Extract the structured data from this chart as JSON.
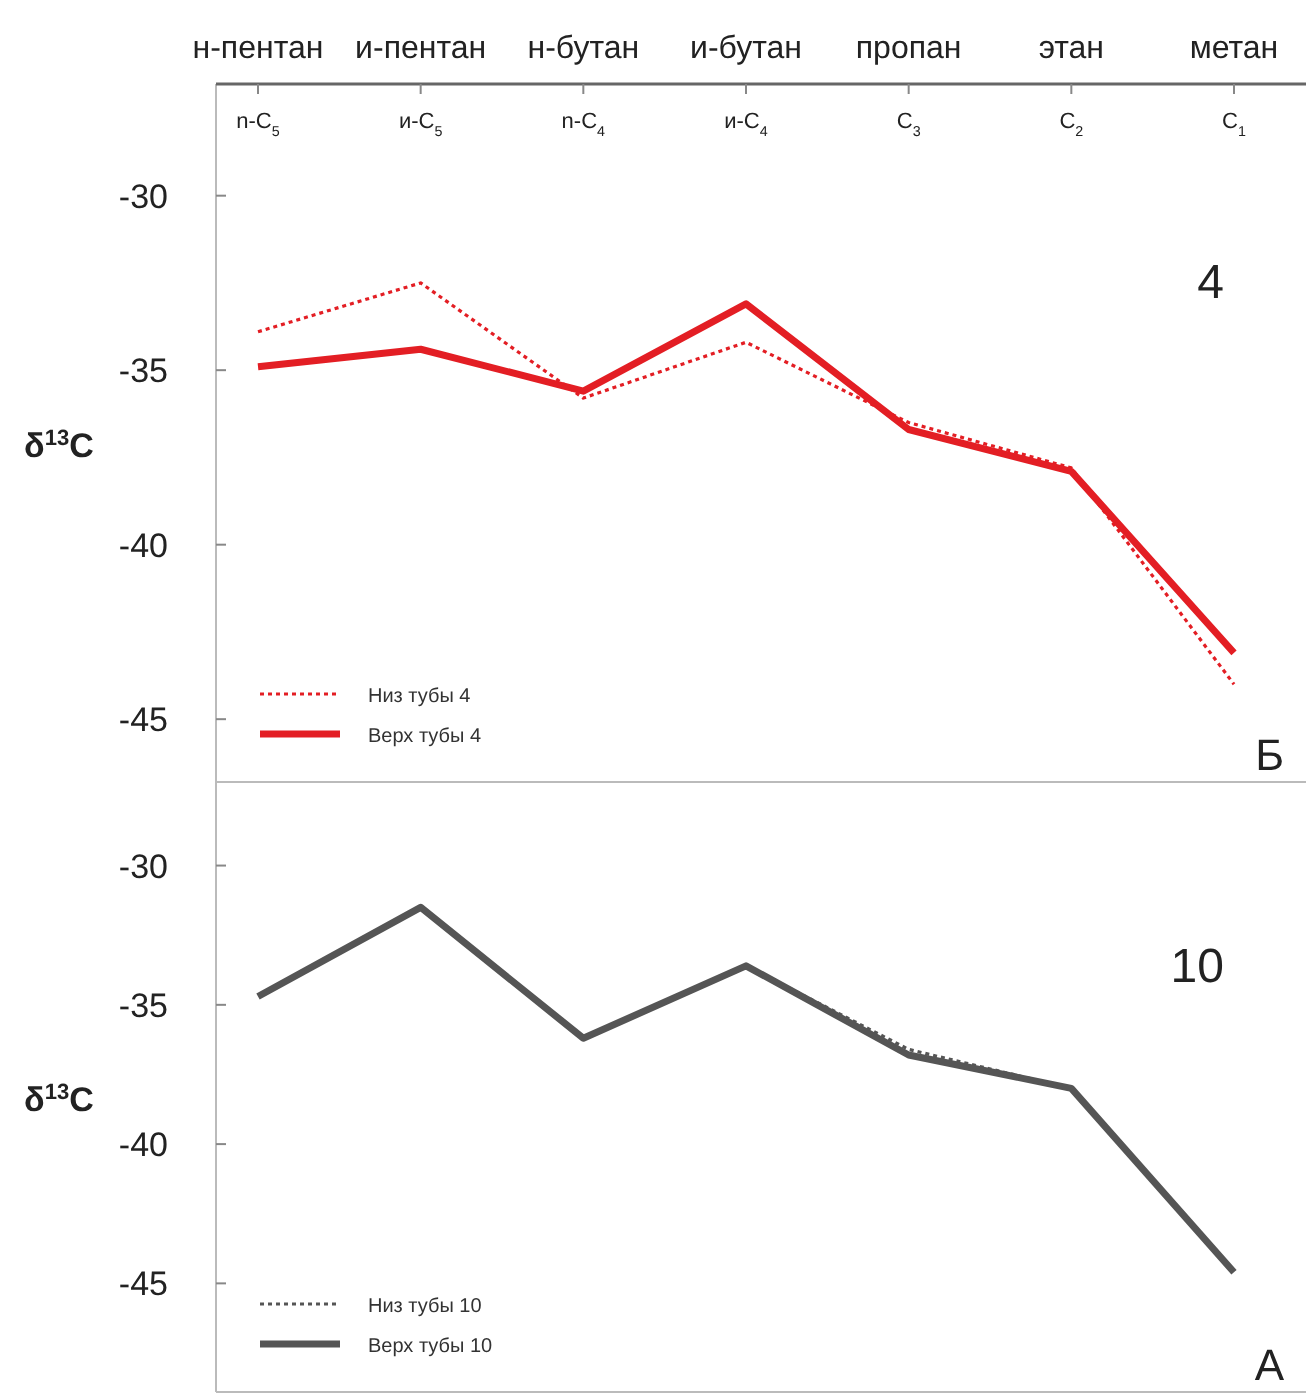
{
  "chart_data": [
    {
      "type": "line",
      "categories": [
        "н-пентан",
        "и-пентан",
        "н-бутан",
        "и-бутан",
        "пропан",
        "этан",
        "метан"
      ],
      "ylabel": "δ$^{13}$C",
      "ylim": [
        -46.8,
        -26.8
      ],
      "yticks": [
        -30,
        -35,
        -40,
        -45
      ],
      "legend": "bottom left",
      "annotations": [
        "4",
        "Б",
        "n-C$_{5}$",
        "и-C$_{5}$",
        "n-C$_{4}$",
        "и-C$_{4}$",
        "C$_{3}$",
        "C$_{2}$",
        "C$_{1}$"
      ],
      "series": [
        {
          "name": "Низ тубы 4",
          "color": "#e31e24",
          "line_style": "dotted",
          "values": [
            -33.9,
            -32.5,
            -35.8,
            -34.2,
            -36.5,
            -37.8,
            -44.0
          ]
        },
        {
          "name": "Верх тубы 4",
          "color": "#e31e24",
          "line_style": "solid",
          "values": [
            -34.9,
            -34.4,
            -35.6,
            -33.1,
            -36.7,
            -37.9,
            -43.1
          ]
        }
      ]
    },
    {
      "type": "line",
      "categories": [
        null,
        null,
        null,
        null,
        null,
        null,
        null
      ],
      "ylabel": "δ$^{13}$C",
      "ylim": [
        -48.9,
        -27.0
      ],
      "yticks": [
        -30,
        -35,
        -40,
        -45
      ],
      "legend": "bottom left",
      "annotations": [
        "10",
        "А"
      ],
      "series": [
        {
          "name": "Низ тубы 10",
          "color": "#555555",
          "line_style": "dotted",
          "values": [
            null,
            null,
            null,
            -33.6,
            -36.6,
            -38.0,
            null
          ]
        },
        {
          "name": "Верх тубы 10",
          "color": "#555555",
          "line_style": "solid",
          "values": [
            -34.7,
            -31.5,
            -36.2,
            -33.6,
            -36.8,
            -38.0,
            -44.6
          ]
        }
      ]
    }
  ]
}
